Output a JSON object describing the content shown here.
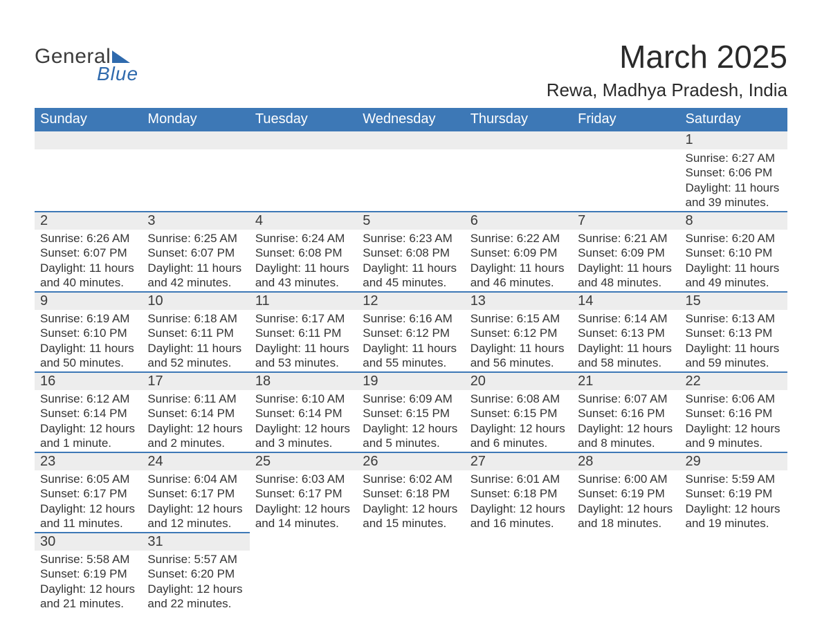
{
  "logo": {
    "text_general": "General",
    "text_blue": "Blue"
  },
  "title": "March 2025",
  "location": "Rewa, Madhya Pradesh, India",
  "colors": {
    "header_bar": "#3d78b6",
    "header_text": "#ffffff",
    "day_bar_bg": "#ededed",
    "row_border": "#3d78b6",
    "body_text": "#333333",
    "logo_accent": "#2f6aad"
  },
  "weekdays": [
    "Sunday",
    "Monday",
    "Tuesday",
    "Wednesday",
    "Thursday",
    "Friday",
    "Saturday"
  ],
  "weeks": [
    [
      {
        "day": null
      },
      {
        "day": null
      },
      {
        "day": null
      },
      {
        "day": null
      },
      {
        "day": null
      },
      {
        "day": null
      },
      {
        "day": "1",
        "sunrise": "Sunrise: 6:27 AM",
        "sunset": "Sunset: 6:06 PM",
        "daylight1": "Daylight: 11 hours",
        "daylight2": "and 39 minutes."
      }
    ],
    [
      {
        "day": "2",
        "sunrise": "Sunrise: 6:26 AM",
        "sunset": "Sunset: 6:07 PM",
        "daylight1": "Daylight: 11 hours",
        "daylight2": "and 40 minutes."
      },
      {
        "day": "3",
        "sunrise": "Sunrise: 6:25 AM",
        "sunset": "Sunset: 6:07 PM",
        "daylight1": "Daylight: 11 hours",
        "daylight2": "and 42 minutes."
      },
      {
        "day": "4",
        "sunrise": "Sunrise: 6:24 AM",
        "sunset": "Sunset: 6:08 PM",
        "daylight1": "Daylight: 11 hours",
        "daylight2": "and 43 minutes."
      },
      {
        "day": "5",
        "sunrise": "Sunrise: 6:23 AM",
        "sunset": "Sunset: 6:08 PM",
        "daylight1": "Daylight: 11 hours",
        "daylight2": "and 45 minutes."
      },
      {
        "day": "6",
        "sunrise": "Sunrise: 6:22 AM",
        "sunset": "Sunset: 6:09 PM",
        "daylight1": "Daylight: 11 hours",
        "daylight2": "and 46 minutes."
      },
      {
        "day": "7",
        "sunrise": "Sunrise: 6:21 AM",
        "sunset": "Sunset: 6:09 PM",
        "daylight1": "Daylight: 11 hours",
        "daylight2": "and 48 minutes."
      },
      {
        "day": "8",
        "sunrise": "Sunrise: 6:20 AM",
        "sunset": "Sunset: 6:10 PM",
        "daylight1": "Daylight: 11 hours",
        "daylight2": "and 49 minutes."
      }
    ],
    [
      {
        "day": "9",
        "sunrise": "Sunrise: 6:19 AM",
        "sunset": "Sunset: 6:10 PM",
        "daylight1": "Daylight: 11 hours",
        "daylight2": "and 50 minutes."
      },
      {
        "day": "10",
        "sunrise": "Sunrise: 6:18 AM",
        "sunset": "Sunset: 6:11 PM",
        "daylight1": "Daylight: 11 hours",
        "daylight2": "and 52 minutes."
      },
      {
        "day": "11",
        "sunrise": "Sunrise: 6:17 AM",
        "sunset": "Sunset: 6:11 PM",
        "daylight1": "Daylight: 11 hours",
        "daylight2": "and 53 minutes."
      },
      {
        "day": "12",
        "sunrise": "Sunrise: 6:16 AM",
        "sunset": "Sunset: 6:12 PM",
        "daylight1": "Daylight: 11 hours",
        "daylight2": "and 55 minutes."
      },
      {
        "day": "13",
        "sunrise": "Sunrise: 6:15 AM",
        "sunset": "Sunset: 6:12 PM",
        "daylight1": "Daylight: 11 hours",
        "daylight2": "and 56 minutes."
      },
      {
        "day": "14",
        "sunrise": "Sunrise: 6:14 AM",
        "sunset": "Sunset: 6:13 PM",
        "daylight1": "Daylight: 11 hours",
        "daylight2": "and 58 minutes."
      },
      {
        "day": "15",
        "sunrise": "Sunrise: 6:13 AM",
        "sunset": "Sunset: 6:13 PM",
        "daylight1": "Daylight: 11 hours",
        "daylight2": "and 59 minutes."
      }
    ],
    [
      {
        "day": "16",
        "sunrise": "Sunrise: 6:12 AM",
        "sunset": "Sunset: 6:14 PM",
        "daylight1": "Daylight: 12 hours",
        "daylight2": "and 1 minute."
      },
      {
        "day": "17",
        "sunrise": "Sunrise: 6:11 AM",
        "sunset": "Sunset: 6:14 PM",
        "daylight1": "Daylight: 12 hours",
        "daylight2": "and 2 minutes."
      },
      {
        "day": "18",
        "sunrise": "Sunrise: 6:10 AM",
        "sunset": "Sunset: 6:14 PM",
        "daylight1": "Daylight: 12 hours",
        "daylight2": "and 3 minutes."
      },
      {
        "day": "19",
        "sunrise": "Sunrise: 6:09 AM",
        "sunset": "Sunset: 6:15 PM",
        "daylight1": "Daylight: 12 hours",
        "daylight2": "and 5 minutes."
      },
      {
        "day": "20",
        "sunrise": "Sunrise: 6:08 AM",
        "sunset": "Sunset: 6:15 PM",
        "daylight1": "Daylight: 12 hours",
        "daylight2": "and 6 minutes."
      },
      {
        "day": "21",
        "sunrise": "Sunrise: 6:07 AM",
        "sunset": "Sunset: 6:16 PM",
        "daylight1": "Daylight: 12 hours",
        "daylight2": "and 8 minutes."
      },
      {
        "day": "22",
        "sunrise": "Sunrise: 6:06 AM",
        "sunset": "Sunset: 6:16 PM",
        "daylight1": "Daylight: 12 hours",
        "daylight2": "and 9 minutes."
      }
    ],
    [
      {
        "day": "23",
        "sunrise": "Sunrise: 6:05 AM",
        "sunset": "Sunset: 6:17 PM",
        "daylight1": "Daylight: 12 hours",
        "daylight2": "and 11 minutes."
      },
      {
        "day": "24",
        "sunrise": "Sunrise: 6:04 AM",
        "sunset": "Sunset: 6:17 PM",
        "daylight1": "Daylight: 12 hours",
        "daylight2": "and 12 minutes."
      },
      {
        "day": "25",
        "sunrise": "Sunrise: 6:03 AM",
        "sunset": "Sunset: 6:17 PM",
        "daylight1": "Daylight: 12 hours",
        "daylight2": "and 14 minutes."
      },
      {
        "day": "26",
        "sunrise": "Sunrise: 6:02 AM",
        "sunset": "Sunset: 6:18 PM",
        "daylight1": "Daylight: 12 hours",
        "daylight2": "and 15 minutes."
      },
      {
        "day": "27",
        "sunrise": "Sunrise: 6:01 AM",
        "sunset": "Sunset: 6:18 PM",
        "daylight1": "Daylight: 12 hours",
        "daylight2": "and 16 minutes."
      },
      {
        "day": "28",
        "sunrise": "Sunrise: 6:00 AM",
        "sunset": "Sunset: 6:19 PM",
        "daylight1": "Daylight: 12 hours",
        "daylight2": "and 18 minutes."
      },
      {
        "day": "29",
        "sunrise": "Sunrise: 5:59 AM",
        "sunset": "Sunset: 6:19 PM",
        "daylight1": "Daylight: 12 hours",
        "daylight2": "and 19 minutes."
      }
    ],
    [
      {
        "day": "30",
        "sunrise": "Sunrise: 5:58 AM",
        "sunset": "Sunset: 6:19 PM",
        "daylight1": "Daylight: 12 hours",
        "daylight2": "and 21 minutes."
      },
      {
        "day": "31",
        "sunrise": "Sunrise: 5:57 AM",
        "sunset": "Sunset: 6:20 PM",
        "daylight1": "Daylight: 12 hours",
        "daylight2": "and 22 minutes."
      },
      {
        "day": null
      },
      {
        "day": null
      },
      {
        "day": null
      },
      {
        "day": null
      },
      {
        "day": null
      }
    ]
  ]
}
